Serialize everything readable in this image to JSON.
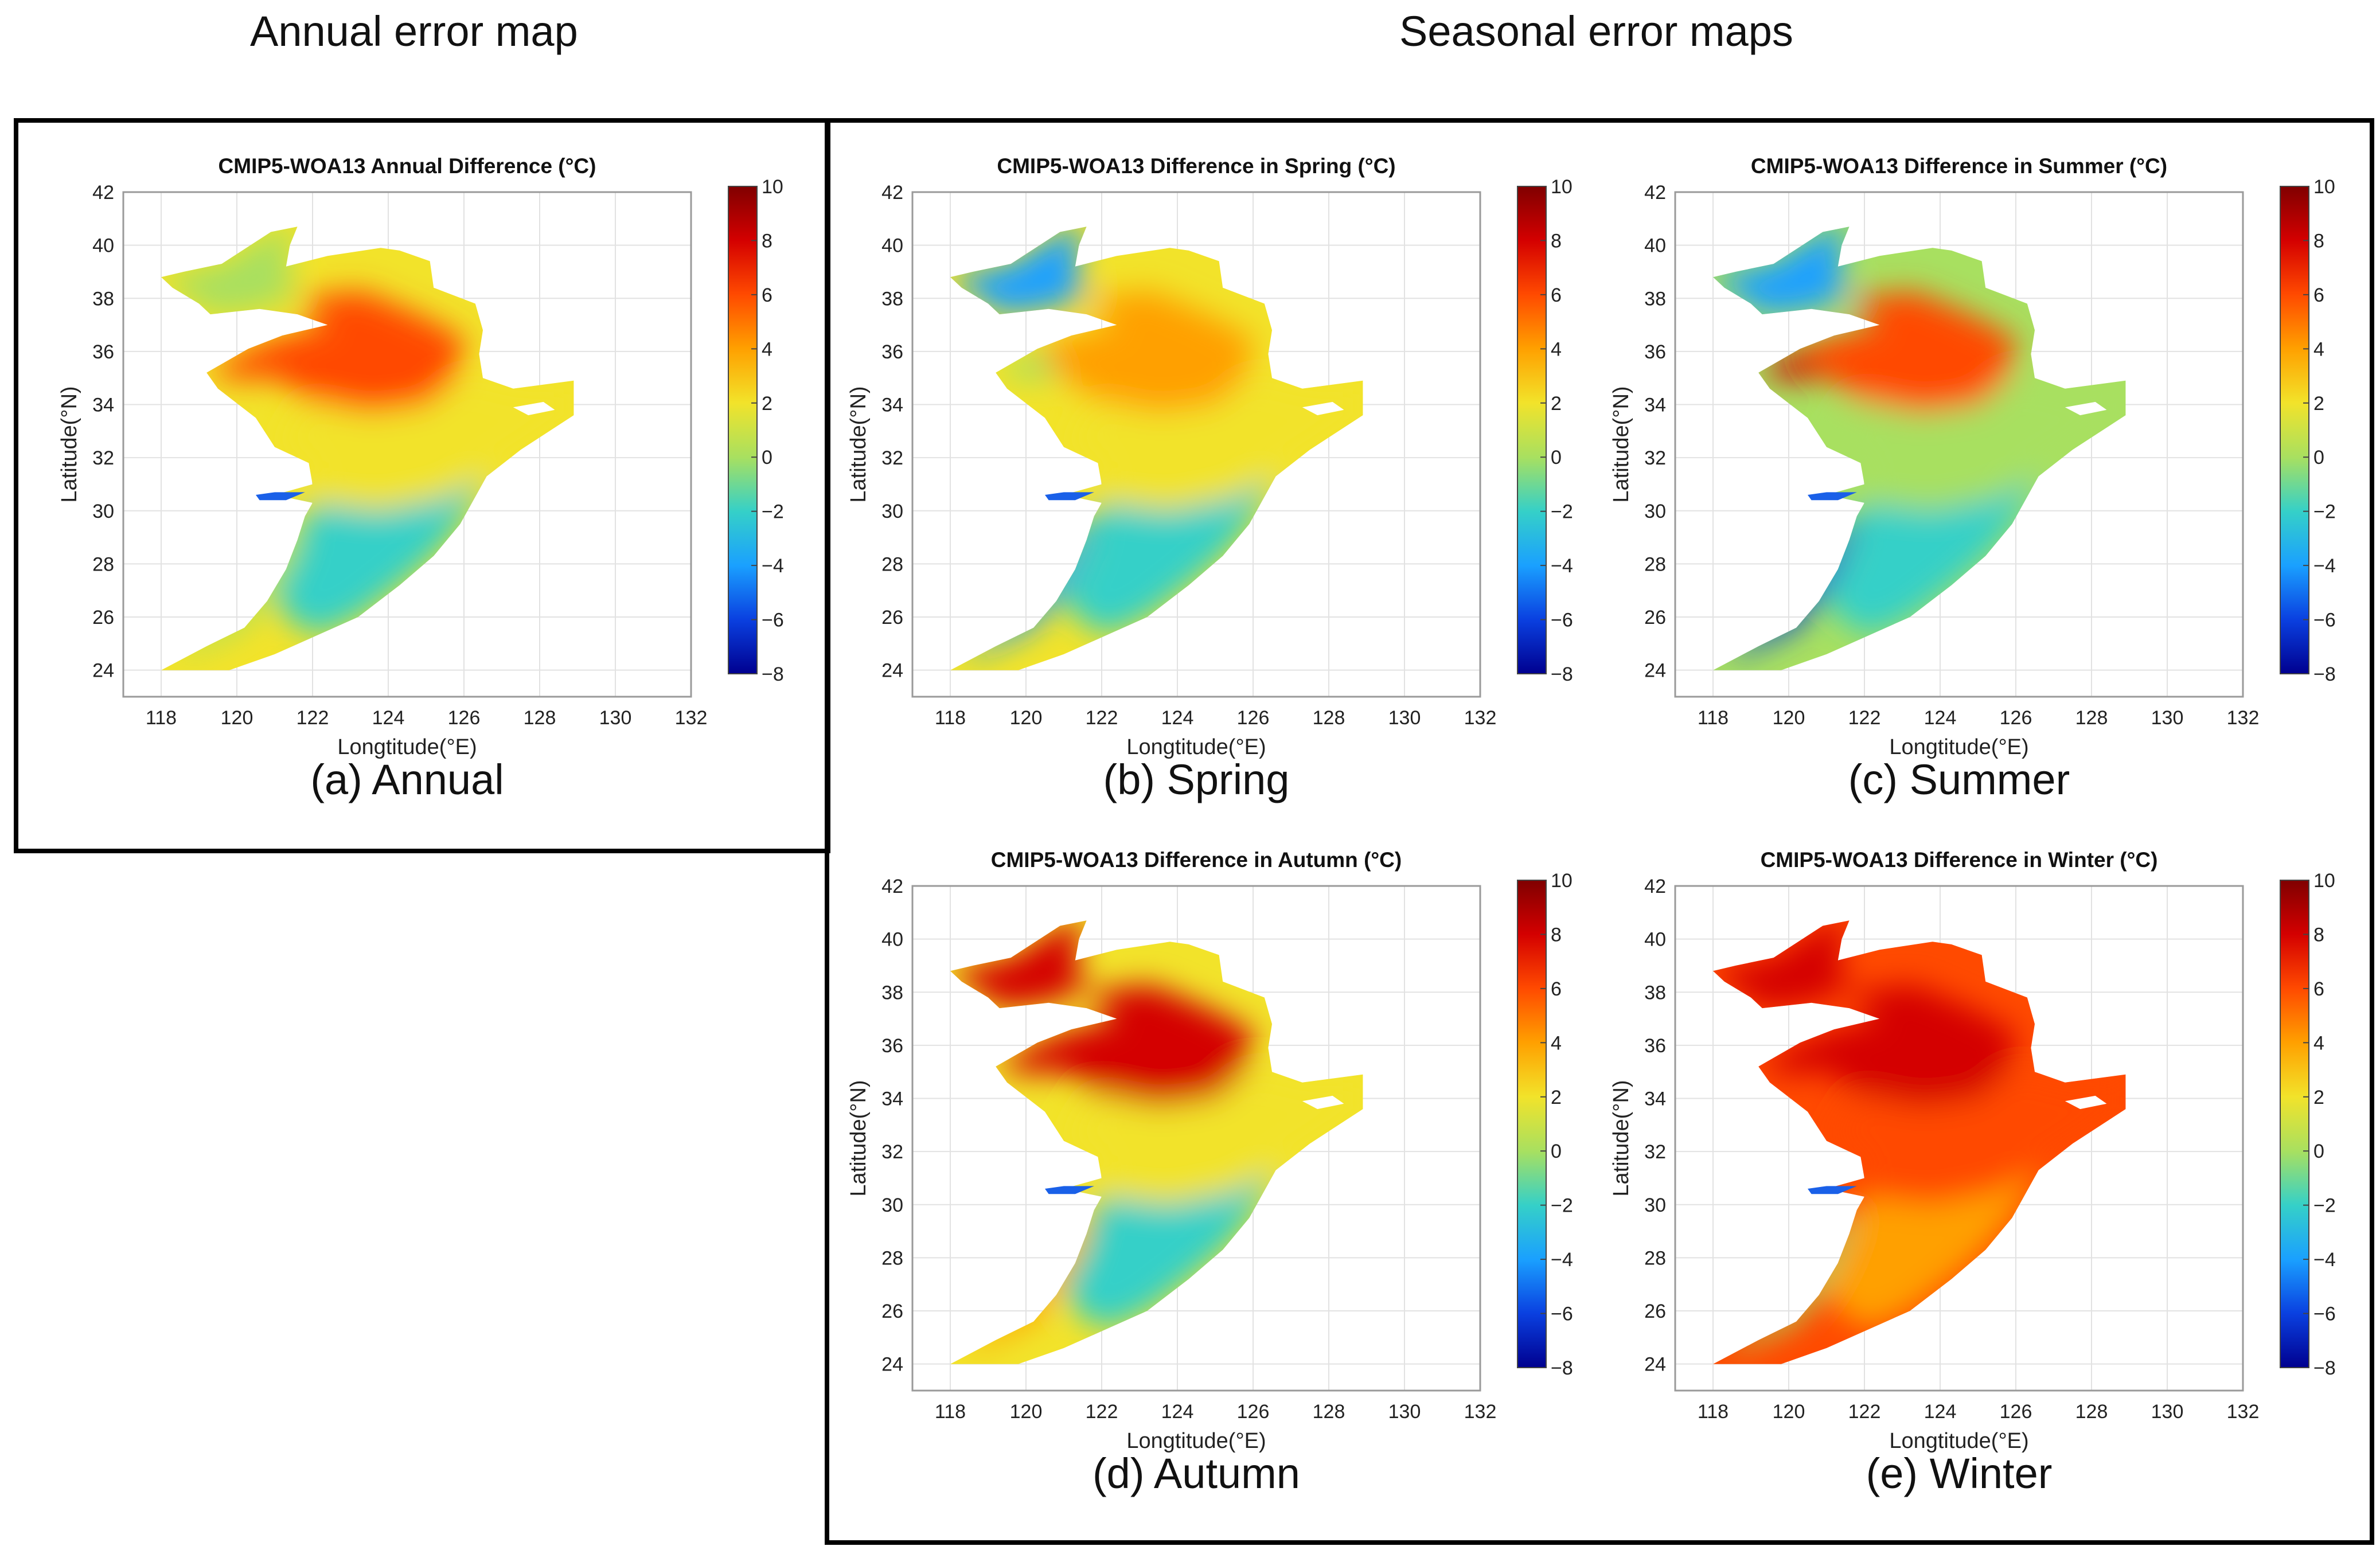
{
  "headers": {
    "annual": "Annual error map",
    "seasonal": "Seasonal error maps"
  },
  "colorbar": {
    "ticks": [
      "10",
      "8",
      "6",
      "4",
      "2",
      "0",
      "−2",
      "−4",
      "−6",
      "−8"
    ],
    "colors": [
      "#800000",
      "#d40000",
      "#ff4a00",
      "#ffa000",
      "#f2e32a",
      "#a8e060",
      "#35d0c8",
      "#1aa0ff",
      "#0a40e0",
      "#00008f"
    ]
  },
  "axes": {
    "xlabel": "Longtitude(°E)",
    "ylabel": "Latitude(°N)",
    "xticks": [
      "118",
      "120",
      "122",
      "124",
      "126",
      "128",
      "130",
      "132"
    ],
    "yticks": [
      "42",
      "40",
      "38",
      "36",
      "34",
      "32",
      "30",
      "28",
      "26",
      "24"
    ]
  },
  "panels": [
    {
      "id": "annual",
      "title": "CMIP5-WOA13 Annual Difference (°C)",
      "caption": "(a) Annual",
      "palette": {
        "north": "#a8e060",
        "gulf": "#ff4a00",
        "mid": "#f2e32a",
        "south": "#35d0c8",
        "coast": "#a8e060",
        "bay": "#ff4a00"
      }
    },
    {
      "id": "spring",
      "title": "CMIP5-WOA13 Difference in Spring (°C)",
      "caption": "(b) Spring",
      "palette": {
        "north": "#1aa0ff",
        "gulf": "#ffa000",
        "mid": "#f2e32a",
        "south": "#35d0c8",
        "coast": "#1aa0ff",
        "bay": "#a8e060"
      }
    },
    {
      "id": "summer",
      "title": "CMIP5-WOA13 Difference in Summer (°C)",
      "caption": "(c) Summer",
      "palette": {
        "north": "#1aa0ff",
        "gulf": "#ff4a00",
        "mid": "#a8e060",
        "south": "#35d0c8",
        "coast": "#0a40e0",
        "bay": "#d40000"
      }
    },
    {
      "id": "autumn",
      "title": "CMIP5-WOA13 Difference in Autumn (°C)",
      "caption": "(d) Autumn",
      "palette": {
        "north": "#d40000",
        "gulf": "#d40000",
        "mid": "#f2e32a",
        "south": "#35d0c8",
        "coast": "#ffa000",
        "bay": "#d40000"
      }
    },
    {
      "id": "winter",
      "title": "CMIP5-WOA13 Difference in Winter (°C)",
      "caption": "(e) Winter",
      "palette": {
        "north": "#d40000",
        "gulf": "#d40000",
        "mid": "#ff4a00",
        "south": "#ffa000",
        "coast": "#a8e060",
        "bay": "#d40000"
      }
    }
  ]
}
